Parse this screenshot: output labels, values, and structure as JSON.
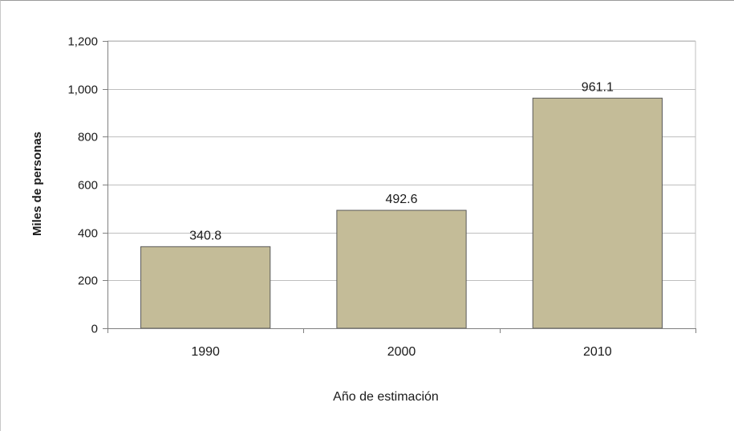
{
  "chart_data": {
    "type": "bar",
    "categories": [
      "1990",
      "2000",
      "2010"
    ],
    "values": [
      340.8,
      492.6,
      961.1
    ],
    "value_labels": [
      "340.8",
      "492.6",
      "961.1"
    ],
    "title": "",
    "xlabel": "Año de estimación",
    "ylabel": "Miles de personas",
    "ylim": [
      0,
      1200
    ],
    "yticks": [
      0,
      200,
      400,
      600,
      800,
      1000,
      1200
    ],
    "ytick_labels": [
      "0",
      "200",
      "400",
      "600",
      "800",
      "1,000",
      "1,200"
    ],
    "grid": true,
    "legend": "none",
    "colors": {
      "bar_fill": "#c4bc98",
      "bar_stroke": "#595959",
      "grid": "#bfbfbf",
      "axis": "#808080",
      "text": "#1a1a1a"
    }
  }
}
